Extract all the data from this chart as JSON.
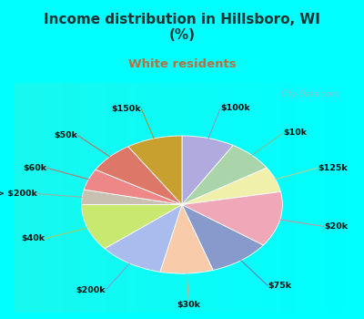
{
  "title": "Income distribution in Hillsboro, WI\n(%)",
  "subtitle": "White residents",
  "title_color": "#1a3333",
  "subtitle_color": "#b87040",
  "bg_cyan": "#00FFFF",
  "watermark": "City-Data.com",
  "labels": [
    "$100k",
    "$10k",
    "$125k",
    "$20k",
    "$75k",
    "$30k",
    "$200k",
    "$40k",
    "> $200k",
    "$60k",
    "$50k",
    "$150k"
  ],
  "values": [
    8.5,
    7.5,
    6.0,
    13.0,
    10.0,
    8.5,
    10.5,
    11.0,
    3.5,
    5.0,
    7.5,
    9.0
  ],
  "colors": [
    "#b0aade",
    "#aad4aa",
    "#f0f0aa",
    "#f0a8b8",
    "#8899cc",
    "#f8ccaa",
    "#aabbee",
    "#c8e870",
    "#c8c0b0",
    "#ee8888",
    "#dd7868",
    "#c8a030"
  ],
  "line_colors": [
    "#9090bb",
    "#88bb88",
    "#c8c888",
    "#dd8898",
    "#6677aa",
    "#d8aa88",
    "#8899cc",
    "#aacc55",
    "#aaa898",
    "#cc6666",
    "#cc6655",
    "#aa8820"
  ],
  "startangle": 90
}
